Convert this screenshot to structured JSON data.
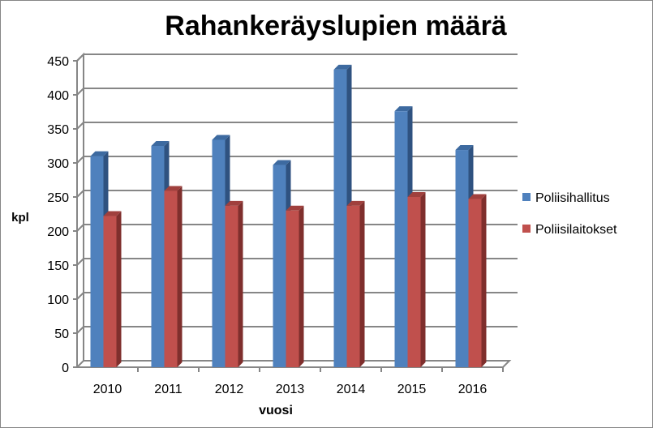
{
  "chart_data": {
    "type": "bar",
    "title": "Rahankeräyslupien määrä",
    "xlabel": "vuosi",
    "ylabel": "kpl",
    "categories": [
      "2010",
      "2011",
      "2012",
      "2013",
      "2014",
      "2015",
      "2016"
    ],
    "series": [
      {
        "name": "Poliisihallitus",
        "color": "#4f81bd",
        "values": [
          310,
          325,
          334,
          297,
          437,
          376,
          319
        ]
      },
      {
        "name": "Poliisilaitokset",
        "color": "#c0504d",
        "values": [
          222,
          259,
          237,
          230,
          237,
          250,
          247
        ]
      }
    ],
    "ylim": [
      0,
      450
    ],
    "yticks": [
      0,
      50,
      100,
      150,
      200,
      250,
      300,
      350,
      400,
      450
    ],
    "grid": true,
    "three_d": true,
    "legend": "right"
  }
}
